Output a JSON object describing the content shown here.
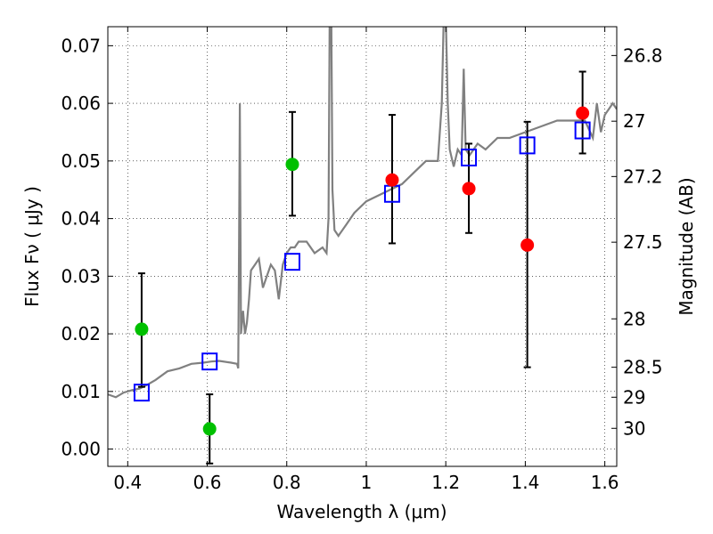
{
  "chart_data": {
    "type": "scatter",
    "xlabel": "Wavelength  λ (μm)",
    "ylabel": "Flux  Fν  ( μJy )",
    "ylabel_right": "Magnitude (AB)",
    "xlim": [
      0.35,
      1.63
    ],
    "ylim": [
      -0.003,
      0.0733
    ],
    "grid": true,
    "x_ticks": [
      {
        "value": 0.4,
        "label": "0.4"
      },
      {
        "value": 0.6,
        "label": "0.6"
      },
      {
        "value": 0.8,
        "label": "0.8"
      },
      {
        "value": 1.0,
        "label": "1"
      },
      {
        "value": 1.2,
        "label": "1.2"
      },
      {
        "value": 1.4,
        "label": "1.4"
      },
      {
        "value": 1.6,
        "label": "1.6"
      }
    ],
    "y_ticks": [
      {
        "value": 0.0,
        "label": "0.00"
      },
      {
        "value": 0.01,
        "label": "0.01"
      },
      {
        "value": 0.02,
        "label": "0.02"
      },
      {
        "value": 0.03,
        "label": "0.03"
      },
      {
        "value": 0.04,
        "label": "0.04"
      },
      {
        "value": 0.05,
        "label": "0.05"
      },
      {
        "value": 0.06,
        "label": "0.06"
      },
      {
        "value": 0.07,
        "label": "0.07"
      }
    ],
    "magnitude_ticks": [
      {
        "label": "26.8",
        "flux": 0.0683
      },
      {
        "label": "27",
        "flux": 0.0569
      },
      {
        "label": "27.2",
        "flux": 0.0473
      },
      {
        "label": "27.5",
        "flux": 0.0359
      },
      {
        "label": "28",
        "flux": 0.0226
      },
      {
        "label": "28.5",
        "flux": 0.0142
      },
      {
        "label": "29",
        "flux": 0.009
      },
      {
        "label": "30",
        "flux": 0.0036
      }
    ],
    "colors": {
      "spectrum": "#808080",
      "green_points": "#00c000",
      "red_points": "#ff0000",
      "model_boxes": "#0000ff",
      "errorbar": "#000000"
    },
    "spectrum": {
      "x": [
        0.35,
        0.37,
        0.39,
        0.41,
        0.43,
        0.45,
        0.47,
        0.5,
        0.53,
        0.56,
        0.59,
        0.61,
        0.63,
        0.66,
        0.675,
        0.678,
        0.68,
        0.682,
        0.685,
        0.69,
        0.695,
        0.7,
        0.705,
        0.71,
        0.72,
        0.73,
        0.74,
        0.75,
        0.76,
        0.77,
        0.78,
        0.79,
        0.8,
        0.81,
        0.82,
        0.83,
        0.85,
        0.87,
        0.89,
        0.9,
        0.905,
        0.908,
        0.912,
        0.915,
        0.92,
        0.93,
        0.95,
        0.97,
        1.0,
        1.03,
        1.06,
        1.09,
        1.12,
        1.15,
        1.18,
        1.19,
        1.195,
        1.2,
        1.205,
        1.21,
        1.22,
        1.23,
        1.24,
        1.245,
        1.25,
        1.26,
        1.28,
        1.3,
        1.33,
        1.36,
        1.4,
        1.44,
        1.48,
        1.52,
        1.55,
        1.57,
        1.58,
        1.59,
        1.6,
        1.61,
        1.62,
        1.63
      ],
      "y": [
        0.0095,
        0.009,
        0.0098,
        0.0102,
        0.0105,
        0.0112,
        0.012,
        0.0135,
        0.014,
        0.0148,
        0.015,
        0.0152,
        0.0153,
        0.015,
        0.0148,
        0.014,
        0.035,
        0.06,
        0.02,
        0.024,
        0.02,
        0.022,
        0.026,
        0.031,
        0.032,
        0.033,
        0.028,
        0.03,
        0.032,
        0.031,
        0.026,
        0.032,
        0.034,
        0.035,
        0.035,
        0.036,
        0.036,
        0.034,
        0.035,
        0.034,
        0.04,
        0.075,
        0.076,
        0.045,
        0.038,
        0.037,
        0.039,
        0.041,
        0.043,
        0.044,
        0.045,
        0.046,
        0.048,
        0.05,
        0.05,
        0.06,
        0.075,
        0.075,
        0.06,
        0.052,
        0.049,
        0.052,
        0.051,
        0.066,
        0.052,
        0.051,
        0.053,
        0.052,
        0.054,
        0.054,
        0.055,
        0.056,
        0.057,
        0.057,
        0.057,
        0.054,
        0.06,
        0.055,
        0.058,
        0.059,
        0.06,
        0.059
      ]
    },
    "green_points": [
      {
        "x": 0.435,
        "y": 0.0208,
        "err_low": 0.0108,
        "err_high": 0.0305
      },
      {
        "x": 0.606,
        "y": 0.0035,
        "err_low": -0.0025,
        "err_high": 0.0095
      },
      {
        "x": 0.814,
        "y": 0.0494,
        "err_low": 0.0405,
        "err_high": 0.0585
      }
    ],
    "red_points": [
      {
        "x": 1.065,
        "y": 0.0467,
        "err_low": 0.0357,
        "err_high": 0.058
      },
      {
        "x": 1.258,
        "y": 0.0452,
        "err_low": 0.0375,
        "err_high": 0.053
      },
      {
        "x": 1.405,
        "y": 0.0354,
        "err_low": 0.0142,
        "err_high": 0.0568
      },
      {
        "x": 1.544,
        "y": 0.0583,
        "err_low": 0.0513,
        "err_high": 0.0655
      }
    ],
    "model_boxes": [
      {
        "x": 0.435,
        "y": 0.0098
      },
      {
        "x": 0.606,
        "y": 0.0152
      },
      {
        "x": 0.814,
        "y": 0.0325
      },
      {
        "x": 1.065,
        "y": 0.0443
      },
      {
        "x": 1.258,
        "y": 0.0506
      },
      {
        "x": 1.405,
        "y": 0.0527
      },
      {
        "x": 1.544,
        "y": 0.0553
      }
    ]
  }
}
